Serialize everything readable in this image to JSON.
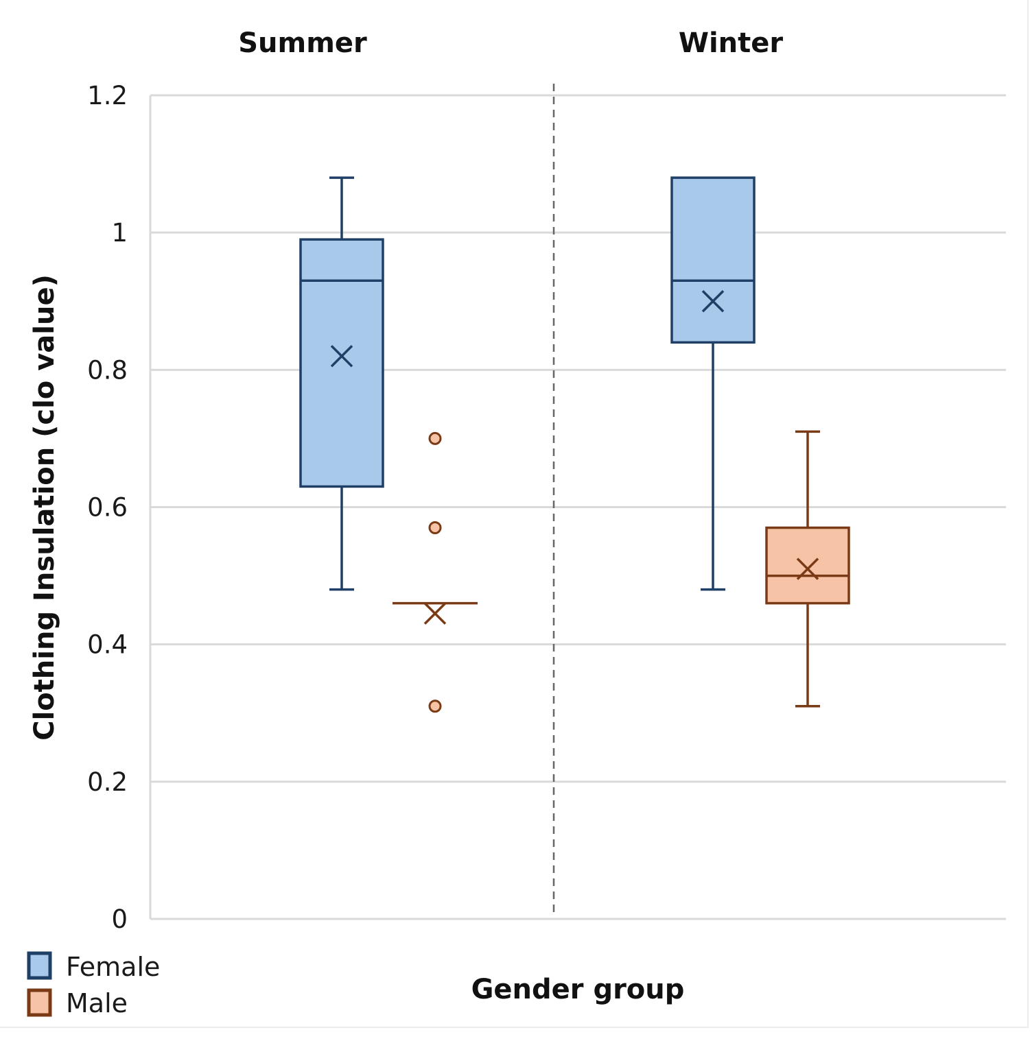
{
  "chart_data": {
    "type": "boxplot",
    "title": "",
    "panels": [
      "Summer",
      "Winter"
    ],
    "xlabel": "Gender group",
    "ylabel": "Clothing Insulation (clo value)",
    "ylim": [
      0,
      1.2
    ],
    "yticks": [
      0,
      0.2,
      0.4,
      0.6,
      0.8,
      1,
      1.2
    ],
    "ytick_labels": [
      "0",
      "0.2",
      "0.4",
      "0.6",
      "0.8",
      "1",
      "1.2"
    ],
    "grid": true,
    "legend": {
      "placement": "bottom-left",
      "entries": [
        {
          "name": "Female",
          "fill": "#a9c9ea",
          "stroke": "#1f3f66"
        },
        {
          "name": "Male",
          "fill": "#f6c3a6",
          "stroke": "#7a3a16"
        }
      ]
    },
    "series": [
      {
        "panel": "Summer",
        "group": "Female",
        "whisker_low": 0.48,
        "q1": 0.63,
        "median": 0.93,
        "q3": 0.99,
        "whisker_high": 1.08,
        "mean": 0.82,
        "outliers": []
      },
      {
        "panel": "Summer",
        "group": "Male",
        "whisker_low": 0.46,
        "q1": 0.46,
        "median": 0.46,
        "q3": 0.46,
        "whisker_high": 0.46,
        "mean": 0.445,
        "outliers": [
          0.7,
          0.57,
          0.31
        ]
      },
      {
        "panel": "Winter",
        "group": "Female",
        "whisker_low": 0.48,
        "q1": 0.84,
        "median": 0.93,
        "q3": 1.08,
        "whisker_high": 1.08,
        "mean": 0.9,
        "outliers": []
      },
      {
        "panel": "Winter",
        "group": "Male",
        "whisker_low": 0.31,
        "q1": 0.46,
        "median": 0.5,
        "q3": 0.57,
        "whisker_high": 0.71,
        "mean": 0.51,
        "outliers": []
      }
    ]
  }
}
